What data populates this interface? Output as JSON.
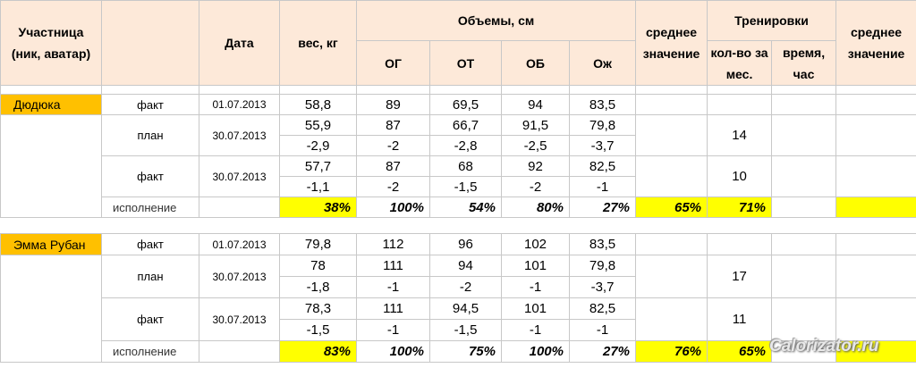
{
  "header": {
    "participant": "Участница (ник, аватар)",
    "date": "Дата",
    "weight": "вес, кг",
    "volumes": "Объемы, см",
    "og": "ОГ",
    "ot": "ОТ",
    "ob": "ОБ",
    "oj": "Ож",
    "avg1": "среднее значение",
    "trainings": "Тренировки",
    "count": "кол-во за мес.",
    "time": "время, час",
    "avg2": "среднее значение"
  },
  "blocks": [
    {
      "name": "Дюдюка",
      "start": {
        "label": "факт",
        "date": "01.07.2013",
        "values": [
          "58,8",
          "89",
          "69,5",
          "94",
          "83,5"
        ]
      },
      "plan": {
        "label": "план",
        "date": "30.07.2013",
        "values": [
          "55,9",
          "87",
          "66,7",
          "91,5",
          "79,8"
        ],
        "deltas": [
          "-2,9",
          "-2",
          "-2,8",
          "-2,5",
          "-3,7"
        ],
        "count": "14"
      },
      "fact": {
        "label": "факт",
        "date": "30.07.2013",
        "values": [
          "57,7",
          "87",
          "68",
          "92",
          "82,5"
        ],
        "deltas": [
          "-1,1",
          "-2",
          "-1,5",
          "-2",
          "-1"
        ],
        "count": "10"
      },
      "completion": {
        "label": "исполнение",
        "values": [
          "38%",
          "100%",
          "54%",
          "80%",
          "27%"
        ],
        "avg": "65%",
        "count": "71%"
      }
    },
    {
      "name": "Эмма Рубан",
      "start": {
        "label": "факт",
        "date": "01.07.2013",
        "values": [
          "79,8",
          "112",
          "96",
          "102",
          "83,5"
        ]
      },
      "plan": {
        "label": "план",
        "date": "30.07.2013",
        "values": [
          "78",
          "111",
          "94",
          "101",
          "79,8"
        ],
        "deltas": [
          "-1,8",
          "-1",
          "-2",
          "-1",
          "-3,7"
        ],
        "count": "17"
      },
      "fact": {
        "label": "факт",
        "date": "30.07.2013",
        "values": [
          "78,3",
          "111",
          "94,5",
          "101",
          "82,5"
        ],
        "deltas": [
          "-1,5",
          "-1",
          "-1,5",
          "-1",
          "-1"
        ],
        "count": "11"
      },
      "completion": {
        "label": "исполнение",
        "values": [
          "83%",
          "100%",
          "75%",
          "100%",
          "27%"
        ],
        "avg": "76%",
        "count": "65%"
      }
    }
  ],
  "watermark": "Calorizator.ru"
}
